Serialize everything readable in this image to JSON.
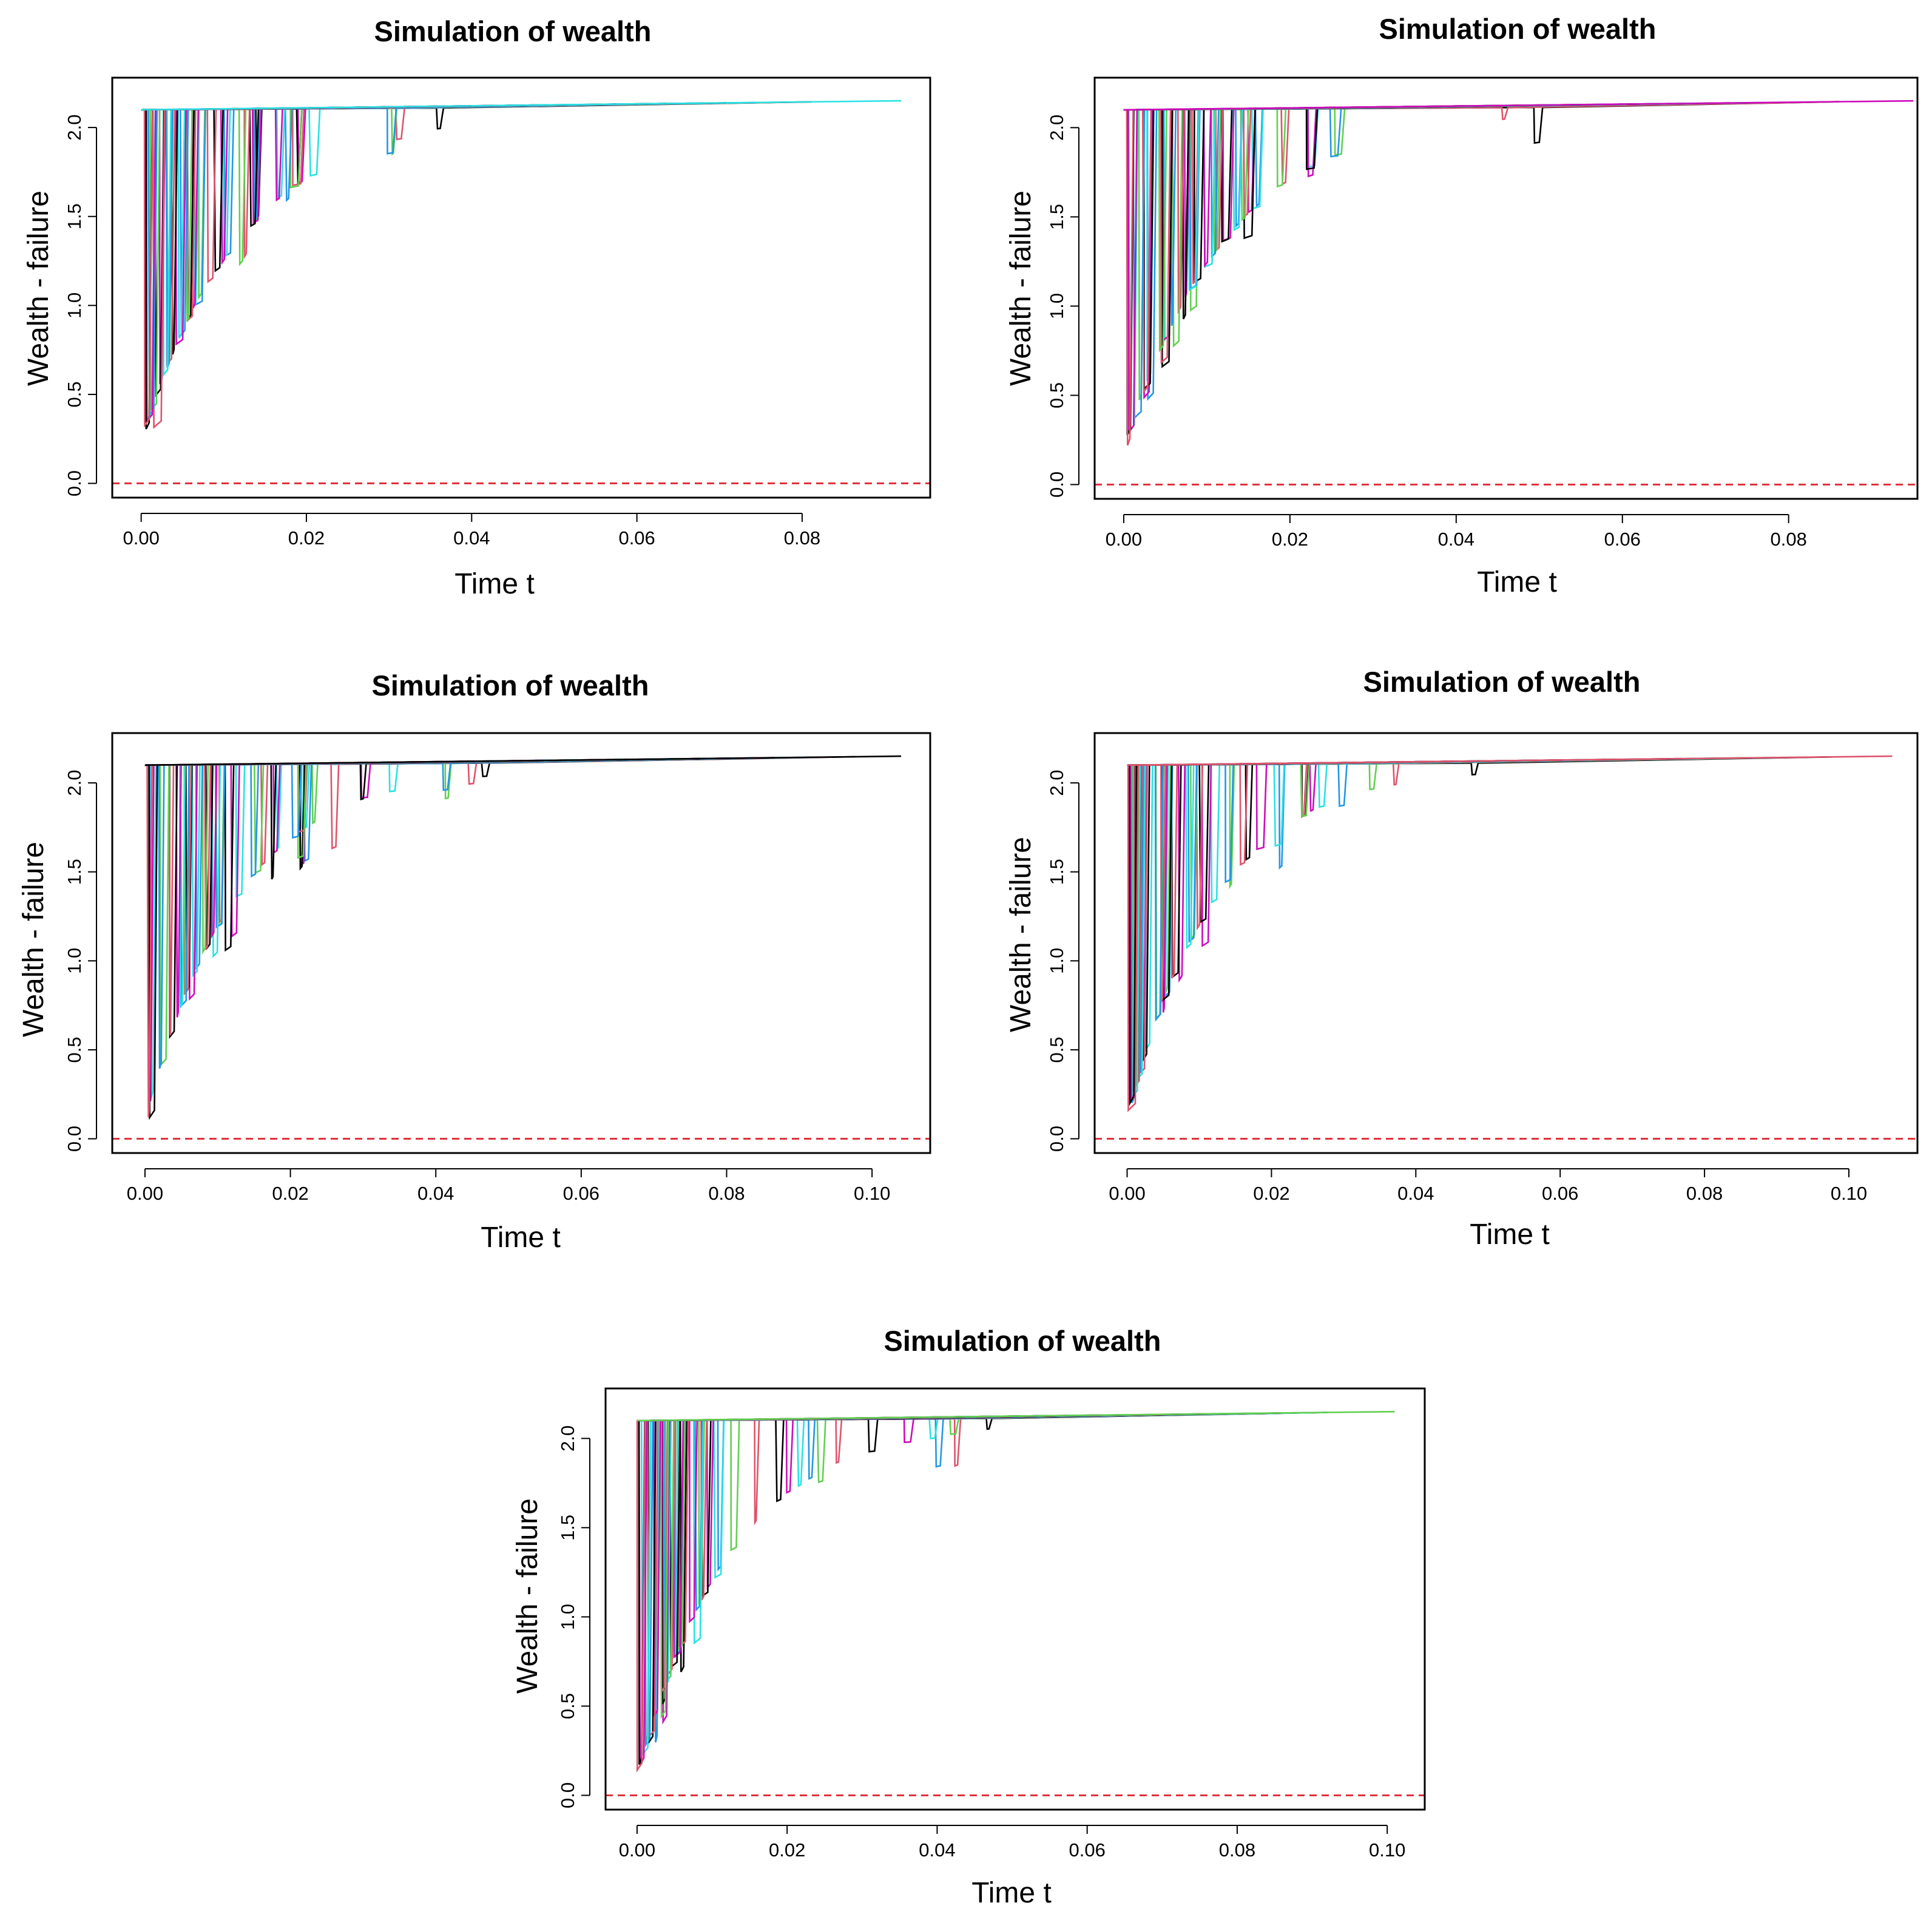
{
  "figure": {
    "layout": "2x2 grid with one centered panel below",
    "panel_count": 5
  },
  "colors": {
    "series_palette": [
      "#000000",
      "#DF536B",
      "#61D04F",
      "#2297E6",
      "#28E2E5",
      "#CD0BBC"
    ],
    "zero_reference_line": "#E0313B",
    "frame": "#000000",
    "background": "#FFFFFF"
  },
  "chart_data": [
    {
      "type": "line",
      "title": "Simulation of wealth",
      "xlabel": "Time t",
      "ylabel": "Wealth - failure",
      "xlim": [
        -0.0035,
        0.0955
      ],
      "ylim": [
        -0.08,
        2.28
      ],
      "xticks": [
        0.0,
        0.02,
        0.04,
        0.06,
        0.08
      ],
      "xtick_labels": [
        "0.00",
        "0.02",
        "0.04",
        "0.06",
        "0.08"
      ],
      "yticks": [
        0.0,
        0.5,
        1.0,
        1.5,
        2.0
      ],
      "ytick_labels": [
        "0.0",
        "0.5",
        "1.0",
        "1.5",
        "2.0"
      ],
      "reference_line": {
        "y": 0.0,
        "style": "dashed"
      },
      "initial_wealth": 2.1,
      "terminal": {
        "t": 0.092,
        "wealth": 2.15
      },
      "paths": {
        "count": 50,
        "seed": 17,
        "decay_time": 0.0125,
        "min_drop": 0.27,
        "final_t": 0.092
      }
    },
    {
      "type": "line",
      "title": "Simulation of wealth",
      "xlabel": "Time t",
      "ylabel": "Wealth - failure",
      "xlim": [
        -0.0035,
        0.0955
      ],
      "ylim": [
        -0.08,
        2.28
      ],
      "xticks": [
        0.0,
        0.02,
        0.04,
        0.06,
        0.08
      ],
      "xtick_labels": [
        "0.00",
        "0.02",
        "0.04",
        "0.06",
        "0.08"
      ],
      "yticks": [
        0.0,
        0.5,
        1.0,
        1.5,
        2.0
      ],
      "ytick_labels": [
        "0.0",
        "0.5",
        "1.0",
        "1.5",
        "2.0"
      ],
      "reference_line": {
        "y": 0.0,
        "style": "dashed"
      },
      "initial_wealth": 2.1,
      "terminal": {
        "t": 0.095,
        "wealth": 2.15
      },
      "paths": {
        "count": 50,
        "seed": 42,
        "decay_time": 0.0125,
        "min_drop": 0.22,
        "final_t": 0.095
      }
    },
    {
      "type": "line",
      "title": "Simulation of wealth",
      "xlabel": "Time t",
      "ylabel": "Wealth - failure",
      "xlim": [
        -0.0045,
        0.108
      ],
      "ylim": [
        -0.08,
        2.28
      ],
      "xticks": [
        0.0,
        0.02,
        0.04,
        0.06,
        0.08,
        0.1
      ],
      "xtick_labels": [
        "0.00",
        "0.02",
        "0.04",
        "0.06",
        "0.08",
        "0.10"
      ],
      "yticks": [
        0.0,
        0.5,
        1.0,
        1.5,
        2.0
      ],
      "ytick_labels": [
        "0.0",
        "0.5",
        "1.0",
        "1.5",
        "2.0"
      ],
      "reference_line": {
        "y": 0.0,
        "style": "dashed"
      },
      "initial_wealth": 2.1,
      "terminal": {
        "t": 0.104,
        "wealth": 2.15
      },
      "paths": {
        "count": 50,
        "seed": 7,
        "decay_time": 0.0125,
        "min_drop": 0.12,
        "final_t": 0.104
      }
    },
    {
      "type": "line",
      "title": "Simulation of wealth",
      "xlabel": "Time t",
      "ylabel": "Wealth - failure",
      "xlim": [
        -0.0045,
        0.1095
      ],
      "ylim": [
        -0.08,
        2.28
      ],
      "xticks": [
        0.0,
        0.02,
        0.04,
        0.06,
        0.08,
        0.1
      ],
      "xtick_labels": [
        "0.00",
        "0.02",
        "0.04",
        "0.06",
        "0.08",
        "0.10"
      ],
      "yticks": [
        0.0,
        0.5,
        1.0,
        1.5,
        2.0
      ],
      "ytick_labels": [
        "0.0",
        "0.5",
        "1.0",
        "1.5",
        "2.0"
      ],
      "reference_line": {
        "y": 0.0,
        "style": "dashed"
      },
      "initial_wealth": 2.1,
      "terminal": {
        "t": 0.106,
        "wealth": 2.15
      },
      "paths": {
        "count": 50,
        "seed": 99,
        "decay_time": 0.0125,
        "min_drop": 0.16,
        "final_t": 0.106
      }
    },
    {
      "type": "line",
      "title": "Simulation of wealth",
      "xlabel": "Time t",
      "ylabel": "Wealth - failure",
      "xlim": [
        -0.0042,
        0.105
      ],
      "ylim": [
        -0.08,
        2.28
      ],
      "xticks": [
        0.0,
        0.02,
        0.04,
        0.06,
        0.08,
        0.1
      ],
      "xtick_labels": [
        "0.00",
        "0.02",
        "0.04",
        "0.06",
        "0.08",
        "0.10"
      ],
      "yticks": [
        0.0,
        0.5,
        1.0,
        1.5,
        2.0
      ],
      "ytick_labels": [
        "0.0",
        "0.5",
        "1.0",
        "1.5",
        "2.0"
      ],
      "reference_line": {
        "y": 0.0,
        "style": "dashed"
      },
      "initial_wealth": 2.1,
      "terminal": {
        "t": 0.101,
        "wealth": 2.15
      },
      "paths": {
        "count": 50,
        "seed": 123,
        "decay_time": 0.0125,
        "min_drop": 0.14,
        "final_t": 0.101
      }
    }
  ]
}
